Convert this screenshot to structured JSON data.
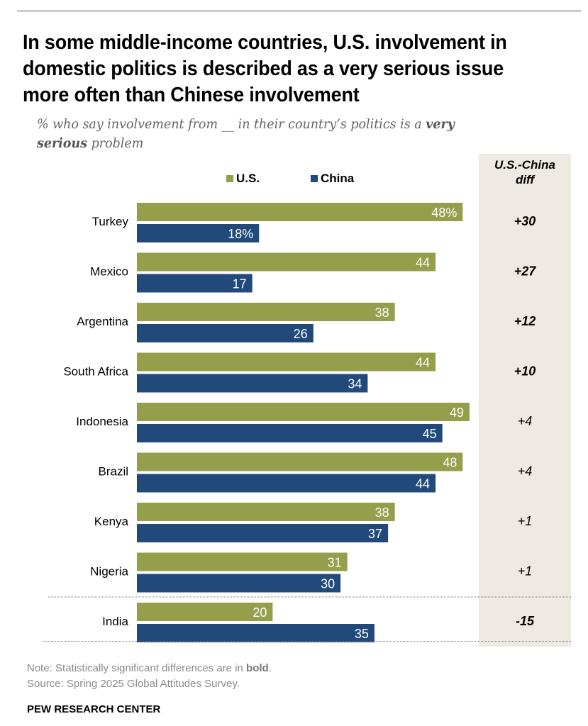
{
  "title": "In some middle-income countries, U.S. involvement in domestic politics is described as a very serious issue more often than Chinese involvement",
  "subtitle": {
    "pre": "% who say involvement from __ in their country’s politics is a ",
    "bold": "very serious",
    "post": " problem"
  },
  "colors": {
    "us": "#959e4a",
    "china": "#214a7b",
    "diff_bg": "#eeeae3"
  },
  "diff_header": "U.S.-China diff",
  "note": {
    "pre": "Note: Statistically significant differences are in ",
    "bold": "bold",
    "post": "."
  },
  "source": "Source: Spring 2025 Global Attitudes Survey.",
  "brand": "PEW RESEARCH CENTER",
  "chart_data": {
    "type": "bar",
    "orientation": "horizontal",
    "title": "In some middle-income countries, U.S. involvement in domestic politics is described as a very serious issue more often than Chinese involvement",
    "xlabel": "",
    "ylabel": "",
    "xlim": [
      0,
      50
    ],
    "grid": false,
    "legend": "top",
    "unit": "%",
    "categories": [
      "Turkey",
      "Mexico",
      "Argentina",
      "South Africa",
      "Indonesia",
      "Brazil",
      "Kenya",
      "Nigeria",
      "India"
    ],
    "series": [
      {
        "name": "U.S.",
        "values": [
          48,
          44,
          38,
          44,
          49,
          48,
          38,
          31,
          20
        ]
      },
      {
        "name": "China",
        "values": [
          18,
          17,
          26,
          34,
          45,
          44,
          37,
          30,
          35
        ]
      }
    ],
    "diff": {
      "label": "U.S.-China diff",
      "values": [
        "+30",
        "+27",
        "+12",
        "+10",
        "+4",
        "+4",
        "+1",
        "+1",
        "-15"
      ],
      "significant": [
        true,
        true,
        true,
        true,
        false,
        false,
        false,
        false,
        true
      ]
    },
    "separator_before": "India"
  }
}
